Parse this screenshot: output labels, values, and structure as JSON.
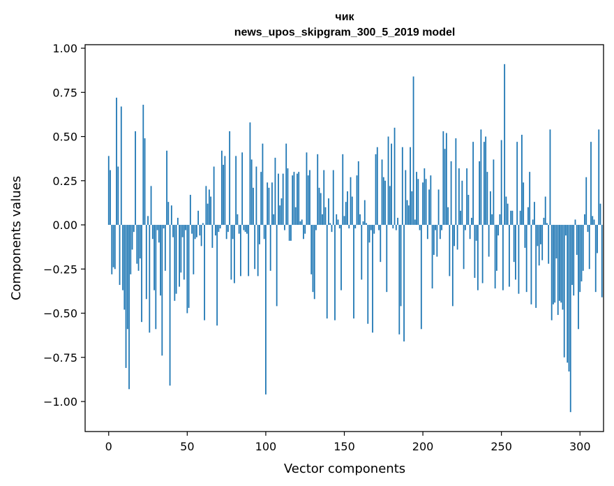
{
  "chart_data": {
    "type": "bar",
    "title": "чик",
    "subtitle": "news_upos_skipgram_300_5_2019 model",
    "xlabel": "Vector components",
    "ylabel": "Components values",
    "xlim": [
      -15,
      315
    ],
    "ylim": [
      -1.17,
      1.02
    ],
    "xticks": [
      0,
      50,
      100,
      150,
      200,
      250,
      300
    ],
    "xtick_labels": [
      "0",
      "50",
      "100",
      "150",
      "200",
      "250",
      "300"
    ],
    "yticks": [
      1.0,
      0.75,
      0.5,
      0.25,
      0.0,
      -0.25,
      -0.5,
      -0.75,
      -1.0
    ],
    "ytick_labels": [
      "1.00",
      "0.75",
      "0.50",
      "0.25",
      "0.00",
      "−0.25",
      "−0.50",
      "−0.75",
      "−1.00"
    ],
    "bar_color": "#1f77b4",
    "grid": false,
    "series": [
      {
        "name": "components",
        "values": [
          0.39,
          0.31,
          -0.28,
          -0.24,
          -0.25,
          0.72,
          0.33,
          -0.34,
          0.67,
          -0.37,
          -0.48,
          -0.81,
          -0.59,
          -0.93,
          -0.28,
          -0.14,
          -0.04,
          0.53,
          -0.22,
          -0.26,
          -0.19,
          -0.55,
          0.68,
          0.49,
          -0.42,
          0.05,
          -0.61,
          0.22,
          -0.08,
          -0.37,
          -0.59,
          -0.03,
          -0.1,
          -0.4,
          -0.74,
          -0.02,
          -0.26,
          0.42,
          0.13,
          -0.91,
          0.11,
          -0.07,
          -0.43,
          -0.39,
          0.04,
          -0.35,
          -0.27,
          -0.07,
          -0.31,
          -0.03,
          -0.5,
          -0.47,
          0.17,
          -0.05,
          -0.28,
          -0.08,
          -0.07,
          0.08,
          -0.06,
          -0.12,
          0.01,
          -0.54,
          0.22,
          0.12,
          0.2,
          0.16,
          -0.13,
          0.33,
          -0.06,
          -0.57,
          -0.04,
          -0.02,
          0.42,
          0.34,
          0.39,
          -0.08,
          -0.04,
          0.53,
          -0.31,
          -0.08,
          -0.33,
          0.39,
          0.06,
          -0.05,
          -0.29,
          0.41,
          -0.03,
          -0.04,
          -0.05,
          -0.29,
          0.58,
          0.37,
          0.21,
          -0.25,
          0.33,
          -0.29,
          -0.11,
          0.3,
          0.46,
          -0.08,
          -0.96,
          0.24,
          0.21,
          -0.26,
          0.24,
          0.06,
          0.38,
          -0.46,
          0.29,
          0.11,
          0.15,
          0.29,
          -0.03,
          0.46,
          0.32,
          -0.09,
          -0.09,
          0.28,
          0.3,
          0.1,
          0.29,
          0.3,
          0.02,
          0.03,
          -0.08,
          -0.05,
          0.41,
          0.28,
          0.31,
          -0.28,
          -0.38,
          -0.42,
          -0.03,
          0.4,
          0.21,
          0.18,
          0.06,
          0.31,
          0.1,
          -0.53,
          0.15,
          0.01,
          -0.04,
          0.31,
          -0.54,
          0.06,
          0.03,
          -0.02,
          -0.37,
          0.4,
          0.05,
          0.13,
          0.19,
          -0.02,
          0.27,
          0.16,
          -0.53,
          -0.02,
          0.28,
          0.36,
          0.06,
          -0.31,
          0.02,
          0.14,
          0.01,
          -0.56,
          -0.1,
          -0.03,
          -0.61,
          -0.05,
          0.4,
          0.44,
          -0.03,
          -0.21,
          0.37,
          0.27,
          0.25,
          -0.38,
          0.5,
          0.22,
          0.46,
          -0.02,
          0.55,
          -0.03,
          0.04,
          -0.62,
          -0.46,
          0.44,
          -0.66,
          0.31,
          0.14,
          0.11,
          0.44,
          0.19,
          0.84,
          0.03,
          0.3,
          0.26,
          -0.03,
          -0.59,
          0.24,
          0.32,
          0.26,
          -0.08,
          0.2,
          0.28,
          -0.36,
          -0.17,
          -0.03,
          -0.18,
          0.2,
          -0.08,
          -0.03,
          0.53,
          0.43,
          0.52,
          0.1,
          -0.29,
          0.36,
          -0.46,
          -0.12,
          0.49,
          -0.14,
          0.32,
          0.08,
          0.25,
          -0.25,
          -0.03,
          0.32,
          0.17,
          -0.08,
          0.04,
          0.47,
          -0.3,
          -0.09,
          -0.37,
          0.36,
          0.54,
          -0.33,
          0.47,
          0.5,
          0.3,
          -0.18,
          0.19,
          0.06,
          0.37,
          -0.36,
          -0.26,
          -0.06,
          0.06,
          0.48,
          -0.37,
          0.91,
          0.16,
          0.12,
          -0.35,
          0.08,
          0.08,
          -0.21,
          -0.31,
          0.47,
          -0.39,
          0.08,
          0.51,
          0.24,
          -0.13,
          -0.38,
          0.1,
          0.3,
          -0.45,
          0.03,
          0.13,
          -0.47,
          -0.12,
          -0.23,
          -0.11,
          -0.2,
          0.04,
          0.16,
          0.01,
          -0.22,
          0.54,
          -0.54,
          -0.45,
          -0.44,
          -0.19,
          -0.51,
          -0.43,
          -0.44,
          -0.48,
          -0.75,
          -0.06,
          -0.78,
          -0.83,
          -1.06,
          -0.34,
          -0.4,
          0.03,
          -0.17,
          -0.59,
          -0.38,
          -0.32,
          -0.26,
          0.06,
          0.27,
          -0.04,
          -0.25,
          0.47,
          0.05,
          0.03,
          -0.38,
          -0.16,
          0.54,
          0.12,
          -0.41
        ]
      }
    ]
  }
}
